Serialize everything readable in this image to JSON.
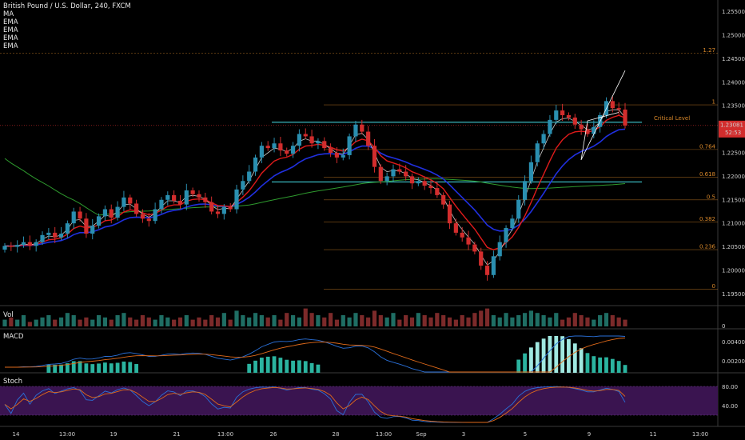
{
  "header": {
    "title": "British Pound / U.S. Dollar, 240, FXCM",
    "indicators": [
      "MA",
      "EMA",
      "EMA",
      "EMA",
      "EMA"
    ]
  },
  "panes": {
    "volume": "Vol",
    "macd": "MACD",
    "stoch": "Stoch"
  },
  "colors": {
    "background": "#000000",
    "up_candle": "#2a8fb0",
    "down_candle": "#d22d2d",
    "ema_fast": "#c8c8c8",
    "ema_red": "#e01b1b",
    "ema_blue": "#2030e0",
    "ma_green": "#2e9a2e",
    "support": "#3fc9cf",
    "fib": "#d9882a",
    "stoch_band": "#3a1450"
  },
  "chart_data": [
    {
      "type": "candlestick",
      "name": "price",
      "y_axis_ticks": [
        "1.25500",
        "1.25000",
        "1.24500",
        "1.24000",
        "1.23500",
        "1.23000",
        "1.22500",
        "1.22000",
        "1.21500",
        "1.21000",
        "1.20500",
        "1.20000",
        "1.19500"
      ],
      "ylim": [
        1.1925,
        1.2575
      ],
      "x_tick_labels": [
        "14",
        "13:00",
        "19",
        "21",
        "13:00",
        "26",
        "28",
        "13:00",
        "Sep",
        "3",
        "5",
        "9",
        "11",
        "13:00"
      ],
      "last_price": "1.23081",
      "countdown": "52:53",
      "annotation": "Critical Level",
      "support_levels": [
        1.2315,
        1.2188
      ],
      "fibonacci": [
        {
          "label": "1.27",
          "value": 1.2462
        },
        {
          "label": "1",
          "value": 1.2352
        },
        {
          "label": "0.764",
          "value": 1.2257
        },
        {
          "label": "0.618",
          "value": 1.2198
        },
        {
          "label": "0.5",
          "value": 1.215
        },
        {
          "label": "0.382",
          "value": 1.2103
        },
        {
          "label": "0.236",
          "value": 1.2044
        },
        {
          "label": "0",
          "value": 1.196
        }
      ],
      "closes": [
        1.2052,
        1.205,
        1.2054,
        1.206,
        1.2052,
        1.206,
        1.2075,
        1.208,
        1.207,
        1.2078,
        1.21,
        1.2125,
        1.211,
        1.2078,
        1.2095,
        1.2115,
        1.213,
        1.2112,
        1.2135,
        1.2155,
        1.2142,
        1.212,
        1.211,
        1.2105,
        1.213,
        1.215,
        1.216,
        1.2148,
        1.214,
        1.217,
        1.2162,
        1.2155,
        1.2145,
        1.2125,
        1.212,
        1.2135,
        1.213,
        1.2172,
        1.219,
        1.221,
        1.224,
        1.2265,
        1.226,
        1.227,
        1.2255,
        1.2248,
        1.2265,
        1.229,
        1.2285,
        1.227,
        1.2275,
        1.226,
        1.225,
        1.224,
        1.2245,
        1.2285,
        1.231,
        1.2295,
        1.2265,
        1.222,
        1.219,
        1.22,
        1.2215,
        1.221,
        1.22,
        1.2185,
        1.219,
        1.218,
        1.2175,
        1.216,
        1.214,
        1.21,
        1.208,
        1.207,
        1.2055,
        1.204,
        1.201,
        1.199,
        1.203,
        1.206,
        1.209,
        1.211,
        1.215,
        1.219,
        1.223,
        1.227,
        1.229,
        1.232,
        1.234,
        1.233,
        1.2325,
        1.231,
        1.23,
        1.229,
        1.2305,
        1.233,
        1.236,
        1.2345,
        1.2342,
        1.2308
      ],
      "volume_ylim": [
        0,
        1
      ],
      "volume": [
        0.3,
        0.4,
        0.3,
        0.5,
        0.2,
        0.3,
        0.4,
        0.5,
        0.3,
        0.4,
        0.6,
        0.5,
        0.3,
        0.4,
        0.3,
        0.5,
        0.4,
        0.3,
        0.5,
        0.6,
        0.4,
        0.3,
        0.5,
        0.4,
        0.3,
        0.5,
        0.4,
        0.3,
        0.4,
        0.5,
        0.3,
        0.4,
        0.3,
        0.5,
        0.4,
        0.6,
        0.3,
        0.7,
        0.5,
        0.4,
        0.6,
        0.5,
        0.4,
        0.5,
        0.3,
        0.6,
        0.5,
        0.4,
        0.8,
        0.6,
        0.5,
        0.4,
        0.6,
        0.3,
        0.5,
        0.4,
        0.6,
        0.5,
        0.4,
        0.7,
        0.5,
        0.4,
        0.6,
        0.3,
        0.5,
        0.4,
        0.6,
        0.5,
        0.4,
        0.6,
        0.5,
        0.4,
        0.3,
        0.5,
        0.4,
        0.6,
        0.7,
        0.8,
        0.5,
        0.4,
        0.6,
        0.4,
        0.5,
        0.6,
        0.7,
        0.6,
        0.5,
        0.4,
        0.6,
        0.3,
        0.4,
        0.6,
        0.5,
        0.4,
        0.3,
        0.5,
        0.6,
        0.5,
        0.4,
        0.3
      ],
      "volume_ticks": [
        "0"
      ],
      "macd_ticks": [
        "0.00400",
        "0.00200"
      ],
      "stoch_ticks": [
        "80.00",
        "40.00"
      ]
    }
  ]
}
